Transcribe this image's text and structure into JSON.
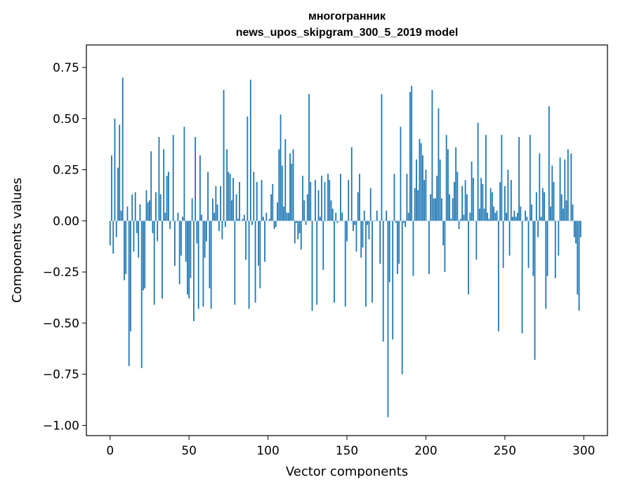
{
  "chart_data": {
    "type": "bar",
    "title": "многогранник",
    "subtitle": "news_upos_skipgram_300_5_2019 model",
    "xlabel": "Vector components",
    "ylabel": "Components values",
    "xlim": [
      -15,
      315
    ],
    "ylim": [
      -1.05,
      0.86
    ],
    "xticks": [
      0,
      50,
      100,
      150,
      200,
      250,
      300
    ],
    "xtick_labels": [
      "0",
      "50",
      "100",
      "150",
      "200",
      "250",
      "300"
    ],
    "yticks": [
      -1.0,
      -0.75,
      -0.5,
      -0.25,
      0.0,
      0.25,
      0.5,
      0.75
    ],
    "ytick_labels": [
      "−1.00",
      "−0.75",
      "−0.50",
      "−0.25",
      "0.00",
      "0.25",
      "0.50",
      "0.75"
    ],
    "grid": false,
    "color": "#1f77b4",
    "values": [
      -0.12,
      0.32,
      -0.16,
      0.5,
      -0.08,
      0.26,
      0.47,
      0.05,
      0.7,
      -0.29,
      -0.26,
      0.07,
      -0.71,
      -0.54,
      0.13,
      -0.15,
      0.14,
      -0.06,
      -0.18,
      0.08,
      -0.72,
      -0.34,
      -0.33,
      0.15,
      0.09,
      0.1,
      0.34,
      -0.06,
      -0.41,
      0.14,
      -0.1,
      0.41,
      0.13,
      -0.38,
      0.35,
      0.04,
      0.22,
      0.24,
      -0.04,
      0.0,
      0.42,
      -0.22,
      0.0,
      0.04,
      -0.31,
      -0.17,
      0.02,
      0.46,
      -0.2,
      -0.36,
      -0.38,
      -0.28,
      0.11,
      -0.49,
      0.41,
      -0.11,
      -0.43,
      0.32,
      0.03,
      -0.42,
      -0.18,
      -0.1,
      0.24,
      -0.33,
      -0.43,
      0.11,
      0.04,
      0.17,
      0.08,
      -0.05,
      0.17,
      -0.09,
      0.64,
      -0.03,
      0.35,
      0.24,
      0.23,
      0.1,
      0.21,
      -0.41,
      0.13,
      0.01,
      0.19,
      0.0,
      0.01,
      0.03,
      -0.19,
      0.51,
      -0.43,
      0.69,
      -0.02,
      0.24,
      -0.4,
      0.19,
      -0.22,
      -0.33,
      0.2,
      0.02,
      -0.2,
      0.04,
      0.0,
      0.01,
      0.13,
      0.18,
      -0.04,
      -0.03,
      0.09,
      0.35,
      0.52,
      0.27,
      0.07,
      0.4,
      0.04,
      0.04,
      0.33,
      0.28,
      0.35,
      -0.11,
      -0.01,
      -0.09,
      -0.06,
      -0.14,
      0.22,
      0.1,
      -0.02,
      0.13,
      0.62,
      0.19,
      -0.44,
      0.0,
      0.2,
      -0.41,
      0.15,
      0.02,
      0.22,
      -0.24,
      0.19,
      0.0,
      0.23,
      0.2,
      0.1,
      0.06,
      -0.4,
      0.04,
      -0.01,
      0.0,
      0.23,
      0.04,
      0.0,
      -0.42,
      -0.1,
      0.2,
      0.0,
      0.36,
      -0.05,
      -0.02,
      -0.15,
      0.14,
      0.23,
      -0.18,
      -0.13,
      0.05,
      -0.42,
      -0.02,
      -0.09,
      0.16,
      -0.4,
      0.0,
      0.0,
      0.05,
      0.0,
      -0.21,
      0.62,
      -0.59,
      -0.0,
      0.05,
      -0.96,
      -0.3,
      -0.0,
      -0.58,
      0.23,
      -0.01,
      -0.26,
      -0.21,
      0.46,
      -0.75,
      -0.01,
      -0.03,
      0.23,
      0.04,
      0.63,
      0.66,
      -0.27,
      0.16,
      0.3,
      0.15,
      0.4,
      0.38,
      0.32,
      0.2,
      0.25,
      0.0,
      -0.26,
      0.13,
      0.64,
      0.11,
      0.11,
      0.22,
      0.55,
      0.3,
      0.11,
      -0.12,
      -0.25,
      0.42,
      0.35,
      0.13,
      0.01,
      0.11,
      0.19,
      0.36,
      0.24,
      -0.04,
      0.01,
      0.17,
      0.03,
      0.2,
      0.13,
      -0.36,
      0.04,
      0.29,
      0.21,
      0.0,
      -0.19,
      0.48,
      0.06,
      0.21,
      0.18,
      0.06,
      0.42,
      0.04,
      0.01,
      0.16,
      0.14,
      0.07,
      0.04,
      0.05,
      -0.54,
      0.19,
      0.42,
      -0.23,
      0.17,
      0.04,
      0.25,
      -0.17,
      0.2,
      0.02,
      0.05,
      0.02,
      0.04,
      0.41,
      0.07,
      -0.55,
      0.0,
      0.05,
      0.02,
      -0.23,
      0.42,
      0.08,
      -0.27,
      -0.68,
      0.14,
      -0.08,
      0.33,
      0.02,
      0.16,
      0.14,
      -0.43,
      -0.27,
      0.56,
      0.07,
      0.27,
      0.19,
      -0.28,
      0.0,
      -0.17,
      0.31,
      0.13,
      0.06,
      0.3,
      0.1,
      0.35,
      0.0,
      0.33,
      0.08,
      -0.08,
      -0.11,
      -0.36,
      -0.44,
      -0.08
    ]
  }
}
